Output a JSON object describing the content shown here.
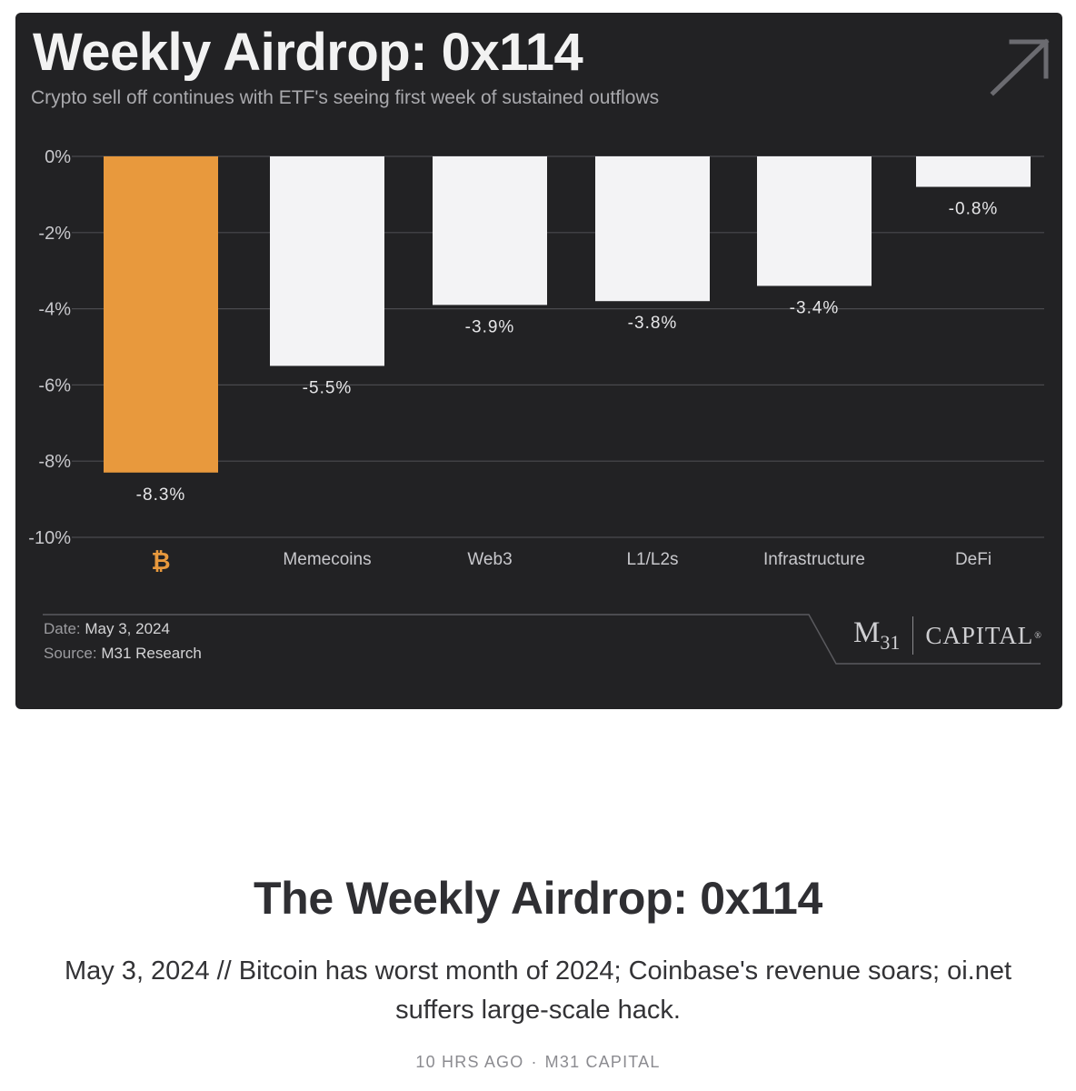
{
  "card": {
    "title": "Weekly Airdrop: 0x114",
    "subtitle": "Crypto sell off continues with ETF's seeing first week of sustained outflows",
    "date_label": "Date:",
    "date_value": "May 3, 2024",
    "source_label": "Source:",
    "source_value": "M31 Research",
    "logo": {
      "m": "M",
      "sub": "31",
      "capital": "CAPITAL",
      "reg": "®"
    }
  },
  "chart_data": {
    "type": "bar",
    "categories": [
      "Bitcoin",
      "Memecoins",
      "Web3",
      "L1/L2s",
      "Infrastructure",
      "DeFi"
    ],
    "category_labels": [
      "₿",
      "Memecoins",
      "Web3",
      "L1/L2s",
      "Infrastructure",
      "DeFi"
    ],
    "values": [
      -8.3,
      -5.5,
      -3.9,
      -3.8,
      -3.4,
      -0.8
    ],
    "data_labels": [
      "-8.3%",
      "-5.5%",
      "-3.9%",
      "-3.8%",
      "-3.4%",
      "-0.8%"
    ],
    "ylim": [
      -10,
      0
    ],
    "yticks": [
      0,
      -2,
      -4,
      -6,
      -8,
      -10
    ],
    "ytick_labels": [
      "0%",
      "-2%",
      "-4%",
      "-6%",
      "-8%",
      "-10%"
    ],
    "colors": [
      "#e8993d",
      "#f3f3f5",
      "#f3f3f5",
      "#f3f3f5",
      "#f3f3f5",
      "#f3f3f5"
    ],
    "grid": true,
    "gridline_color": "#4a4a4e",
    "label_color": "#c8c8cc",
    "accent_color": "#e8993d"
  },
  "post": {
    "title": "The Weekly Airdrop: 0x114",
    "description": "May 3, 2024 // Bitcoin has worst month of 2024; Coinbase's revenue soars; oi.net suffers large-scale hack.",
    "time": "10 HRS AGO",
    "separator": "·",
    "author": "M31 CAPITAL"
  }
}
